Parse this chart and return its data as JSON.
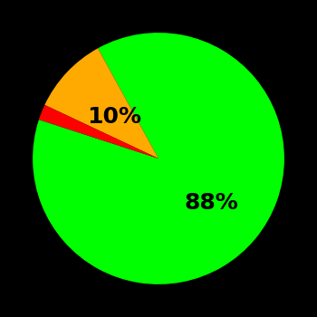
{
  "slices": [
    88,
    10,
    2
  ],
  "colors": [
    "#00ff00",
    "#ffaa00",
    "#ff0000"
  ],
  "labels": [
    "88%",
    "10%",
    ""
  ],
  "background_color": "#000000",
  "text_color": "#000000",
  "label_fontsize": 18,
  "label_fontweight": "bold",
  "startangle": 162,
  "counterclock": true,
  "figsize": [
    3.5,
    3.5
  ],
  "dpi": 100,
  "green_label_r": 0.55,
  "yellow_label_r": 0.48
}
